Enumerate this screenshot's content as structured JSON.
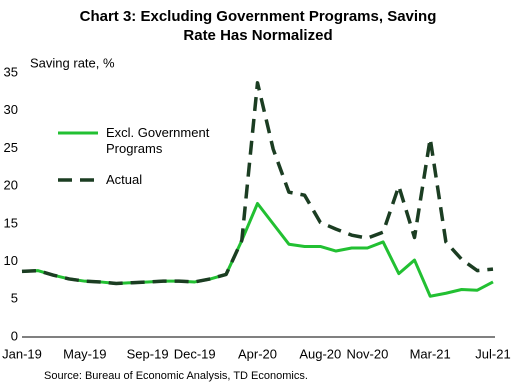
{
  "chart_data": {
    "type": "line",
    "title": [
      "Chart 3: Excluding Government Programs, Saving",
      "Rate Has Normalized"
    ],
    "y_label": "Saving rate, %",
    "source": "Source:  Bureau  of Economic  Analysis,  TD Economics.",
    "categories": [
      "Jan-19",
      null,
      null,
      null,
      "May-19",
      null,
      null,
      null,
      "Sep-19",
      null,
      null,
      "Dec-19",
      null,
      null,
      null,
      "Apr-20",
      null,
      null,
      null,
      "Aug-20",
      null,
      null,
      "Nov-20",
      null,
      null,
      null,
      "Mar-21",
      null,
      null,
      null,
      "Jul-21"
    ],
    "ylim": [
      0,
      35
    ],
    "yticks": [
      0,
      5,
      10,
      15,
      20,
      25,
      30,
      35
    ],
    "grid": false,
    "legend": "upper left",
    "series": [
      {
        "name": "Excl. Government Programs",
        "color": "#22c032",
        "line_style": "solid",
        "values": [
          8.7,
          8.8,
          8.2,
          7.7,
          7.4,
          7.3,
          7.1,
          7.2,
          7.3,
          7.4,
          7.4,
          7.3,
          7.7,
          8.3,
          12.8,
          17.7,
          15.0,
          12.3,
          12.0,
          12.0,
          11.4,
          11.8,
          11.8,
          12.6,
          8.4,
          10.2,
          5.4,
          5.8,
          6.3,
          6.2,
          7.3
        ]
      },
      {
        "name": "Actual",
        "color": "#1b3d22",
        "line_style": "dashed",
        "values": [
          8.7,
          8.8,
          8.2,
          7.7,
          7.4,
          7.3,
          7.1,
          7.2,
          7.3,
          7.4,
          7.4,
          7.3,
          7.7,
          8.3,
          12.8,
          33.7,
          24.9,
          19.2,
          18.8,
          15.2,
          14.3,
          13.5,
          13.1,
          13.9,
          20.0,
          13.2,
          26.3,
          12.6,
          10.3,
          8.8,
          9.0
        ]
      }
    ]
  }
}
